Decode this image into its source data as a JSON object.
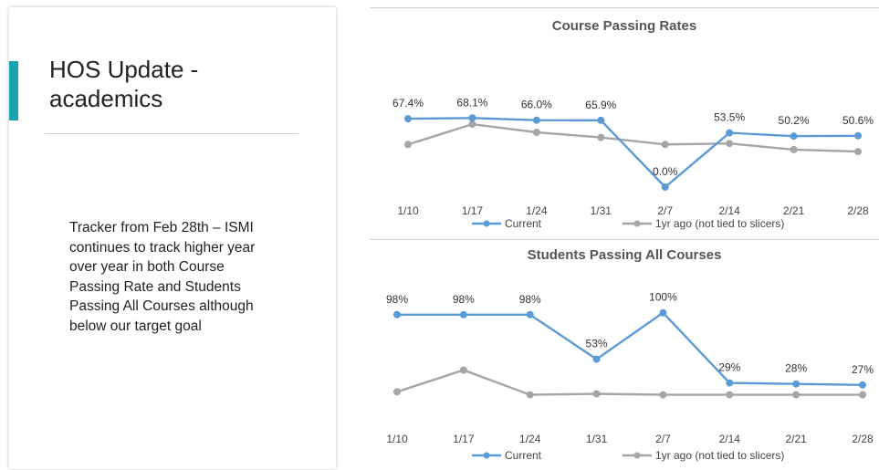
{
  "slide": {
    "title": "HOS Update -\nacademics",
    "body": "Tracker from Feb 28th – ISMI continues to track higher year over year in both Course Passing Rate and Students Passing All Courses although below our target goal",
    "accent_color": "#17a5ad"
  },
  "chart_data": [
    {
      "type": "line",
      "title": "Course Passing Rates",
      "categories": [
        "1/10",
        "1/17",
        "1/24",
        "1/31",
        "2/7",
        "2/14",
        "2/21",
        "2/28"
      ],
      "series": [
        {
          "name": "Current",
          "color": "#5b9bd5",
          "values": [
            67.4,
            68.1,
            66.0,
            65.9,
            0.0,
            53.5,
            50.2,
            50.6
          ],
          "labels": [
            "67.4%",
            "68.1%",
            "66.0%",
            "65.9%",
            "0.0%",
            "53.5%",
            "50.2%",
            "50.6%"
          ]
        },
        {
          "name": "1yr ago (not tied to slicers)",
          "color": "#a5a5a5",
          "values": [
            42,
            62,
            54,
            49,
            42,
            43,
            37,
            35
          ]
        }
      ],
      "ylim": [
        0,
        90
      ],
      "grid": false,
      "legend": "bottom"
    },
    {
      "type": "line",
      "title": "Students Passing All Courses",
      "categories": [
        "1/10",
        "1/17",
        "1/24",
        "1/31",
        "2/7",
        "2/14",
        "2/21",
        "2/28"
      ],
      "series": [
        {
          "name": "Current",
          "color": "#5b9bd5",
          "values": [
            98,
            98,
            98,
            53,
            100,
            29,
            28,
            27
          ],
          "labels": [
            "98%",
            "98%",
            "98%",
            "53%",
            "100%",
            "29%",
            "28%",
            "27%"
          ]
        },
        {
          "name": "1yr ago (not tied to slicers)",
          "color": "#a5a5a5",
          "values": [
            20,
            42,
            17,
            18,
            17,
            17,
            17,
            17
          ]
        }
      ],
      "ylim": [
        0,
        120
      ],
      "grid": false,
      "legend": "bottom"
    }
  ]
}
